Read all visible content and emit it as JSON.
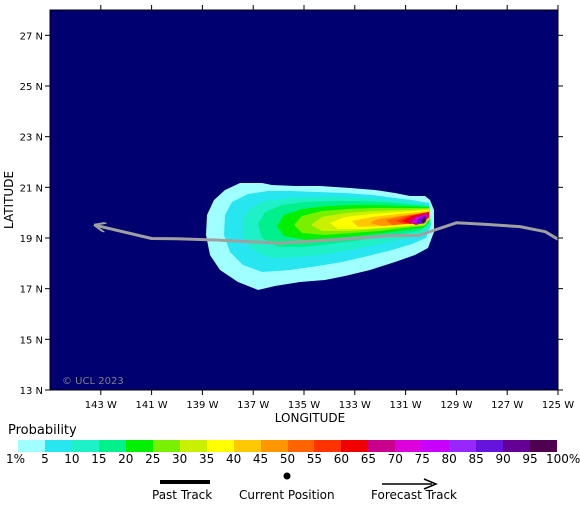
{
  "map": {
    "xlabel": "LONGITUDE",
    "ylabel": "LATITUDE",
    "watermark": "© UCL 2023",
    "lat_ticks": [
      "27 N",
      "25 N",
      "23 N",
      "21 N",
      "19 N",
      "17 N",
      "15 N",
      "13 N"
    ],
    "lon_ticks": [
      "143 W",
      "141 W",
      "139 W",
      "137 W",
      "135 W",
      "133 W",
      "131 W",
      "129 W",
      "127 W",
      "125 W"
    ],
    "lat_range": [
      13,
      28
    ],
    "lon_range": [
      -145,
      -125
    ],
    "ocean_color": "#000070",
    "track_color": "#a0a0a0",
    "forecast_track": [
      {
        "lon": -131.5,
        "lat": 19.1
      },
      {
        "lon": -133.5,
        "lat": 18.95
      },
      {
        "lon": -136.0,
        "lat": 18.8
      },
      {
        "lon": -138.5,
        "lat": 18.92
      },
      {
        "lon": -140.0,
        "lat": 18.97
      },
      {
        "lon": -141.0,
        "lat": 18.98
      },
      {
        "lon": -143.2,
        "lat": 19.5
      }
    ],
    "past_track": [
      {
        "lon": -125.0,
        "lat": 18.95
      },
      {
        "lon": -125.5,
        "lat": 19.25
      },
      {
        "lon": -126.5,
        "lat": 19.45
      },
      {
        "lon": -128.0,
        "lat": 19.55
      },
      {
        "lon": -129.0,
        "lat": 19.6
      },
      {
        "lon": -130.5,
        "lat": 19.1
      },
      {
        "lon": -131.5,
        "lat": 19.1
      }
    ],
    "current_position": {
      "lon": -131.5,
      "lat": 19.1
    }
  },
  "legend": {
    "title": "Probability",
    "colors": [
      "#a0ffff",
      "#28e6f0",
      "#1ef0c8",
      "#00f08c",
      "#00f000",
      "#78f000",
      "#c8f000",
      "#ffff00",
      "#ffc800",
      "#ff9600",
      "#ff6400",
      "#ff3200",
      "#f00000",
      "#c8008c",
      "#dc00dc",
      "#c800ff",
      "#9628ff",
      "#6414dc",
      "#640096",
      "#500050"
    ],
    "ticks": [
      "1%",
      "5",
      "10",
      "15",
      "20",
      "25",
      "30",
      "35",
      "40",
      "45",
      "50",
      "55",
      "60",
      "65",
      "70",
      "75",
      "80",
      "85",
      "90",
      "95",
      "100%"
    ]
  },
  "key": {
    "past_track": "Past Track",
    "current_position": "Current Position",
    "forecast_track": "Forecast Track"
  }
}
